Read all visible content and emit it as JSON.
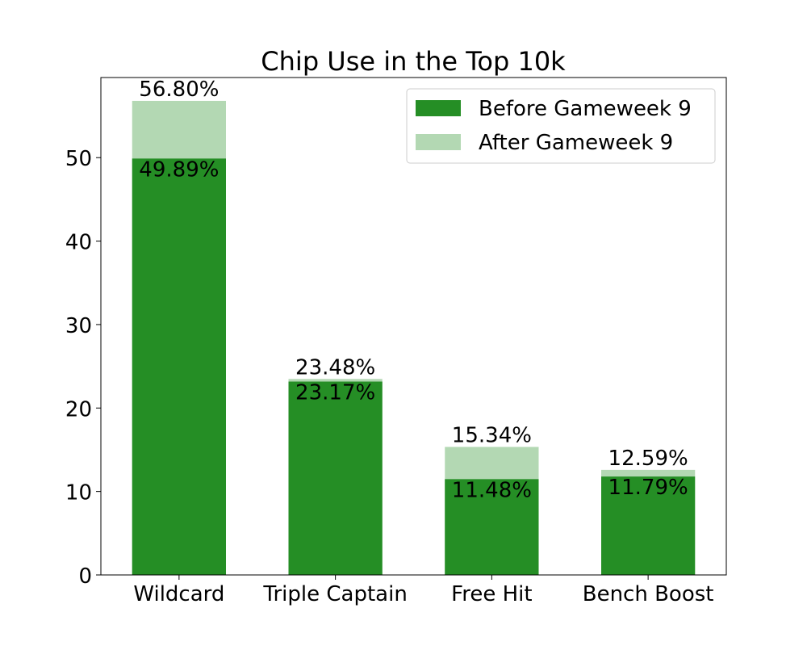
{
  "chart_data": {
    "type": "bar",
    "stacked": "overlay",
    "title": "Chip Use in the Top 10k",
    "xlabel": "",
    "ylabel": "",
    "categories": [
      "Wildcard",
      "Triple Captain",
      "Free Hit",
      "Bench Boost"
    ],
    "series": [
      {
        "name": "Before Gameweek 9",
        "values": [
          49.89,
          23.17,
          11.48,
          11.79
        ],
        "labels": [
          "49.89%",
          "23.17%",
          "11.48%",
          "11.79%"
        ],
        "color": "#258e25"
      },
      {
        "name": "After Gameweek 9",
        "values": [
          56.8,
          23.48,
          15.34,
          12.59
        ],
        "labels": [
          "56.80%",
          "23.48%",
          "15.34%",
          "12.59%"
        ],
        "color": "#b3d8b3"
      }
    ],
    "ylim": [
      0,
      59.6
    ],
    "yticks": [
      0,
      10,
      20,
      30,
      40,
      50
    ],
    "legend": "top-right",
    "grid": false
  }
}
